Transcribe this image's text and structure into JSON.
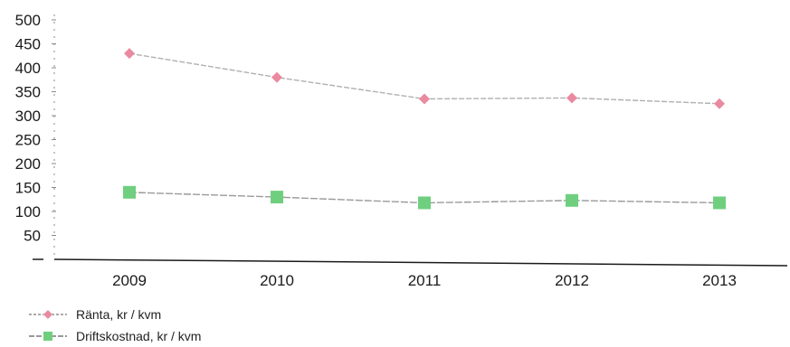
{
  "chart_data": {
    "type": "line",
    "title": "",
    "xlabel": "",
    "ylabel": "",
    "categories": [
      "2009",
      "2010",
      "2011",
      "2012",
      "2013"
    ],
    "ylim": [
      0,
      500
    ],
    "yticks": [
      50,
      100,
      150,
      200,
      250,
      300,
      350,
      400,
      450,
      500
    ],
    "grid": false,
    "legend_position": "bottom-left",
    "series": [
      {
        "name": "Ränta, kr / kvm",
        "values": [
          430,
          380,
          335,
          337,
          325
        ],
        "color": "#ea8aa0",
        "marker": "diamond"
      },
      {
        "name": "Driftskostnad, kr / kvm",
        "values": [
          140,
          130,
          118,
          123,
          118
        ],
        "color": "#6fcf7f",
        "marker": "square"
      }
    ]
  }
}
